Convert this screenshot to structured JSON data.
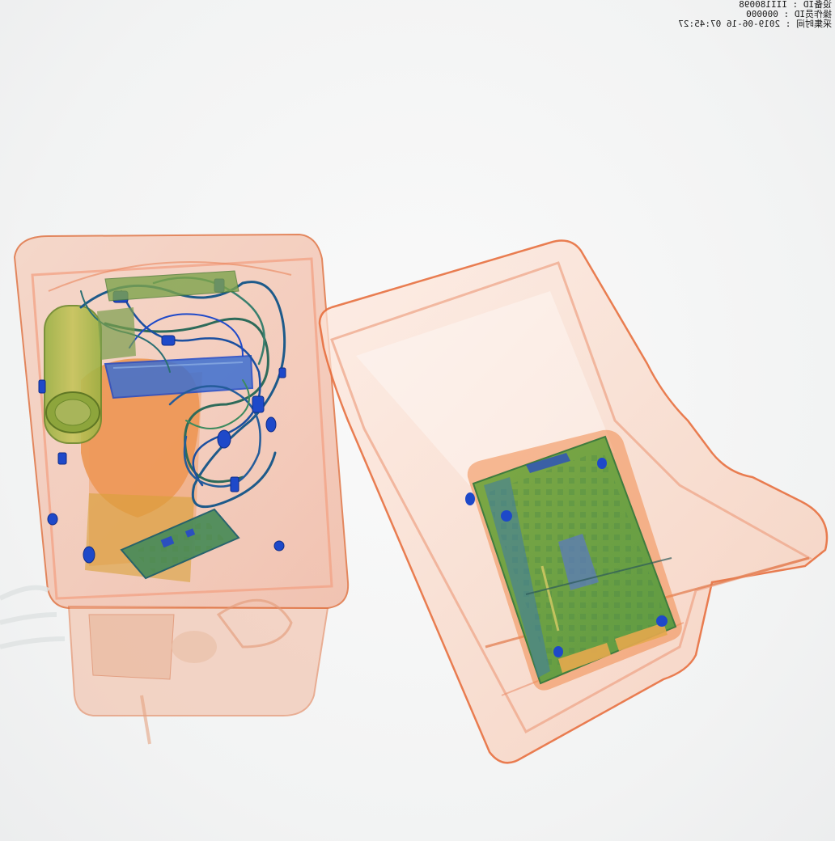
{
  "scan_info": {
    "device_id": "设备ID : III180098",
    "operator_id": "操作员ID : 000000",
    "capture_time": "采集时间 : 2019-06-16 07:45:27"
  },
  "colors": {
    "background": "#f4f5f5",
    "plastic_tray": "#e8703f",
    "organic": "#e07a3a",
    "mixed": "#8faa2e",
    "metal": "#1e49c9"
  }
}
